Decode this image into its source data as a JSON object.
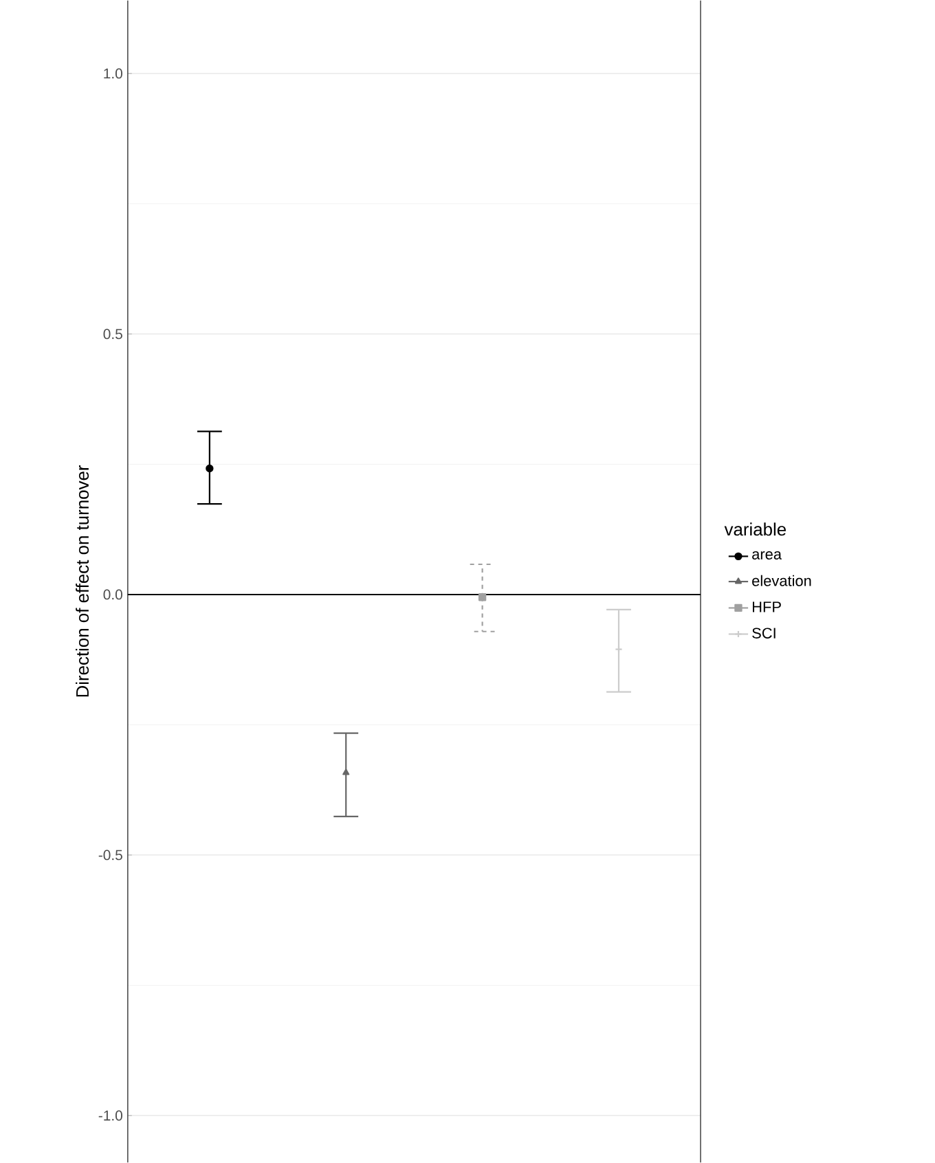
{
  "chart_data": {
    "type": "scatter",
    "ylabel": "Direction of effect on turnover",
    "legend_title": "variable",
    "categories": [
      null,
      null,
      null,
      null
    ],
    "series": [
      {
        "name": "area",
        "color": "#000000",
        "marker": "circle",
        "line_style": "solid",
        "values": [
          0.242,
          null,
          null,
          null
        ],
        "errors": [
          [
            0.174,
            0.313
          ],
          null,
          null,
          null
        ]
      },
      {
        "name": "elevation",
        "color": "#666666",
        "marker": "triangle",
        "line_style": "solid",
        "values": [
          null,
          -0.342,
          null,
          null
        ],
        "errors": [
          null,
          [
            -0.426,
            -0.266
          ],
          null,
          null
        ]
      },
      {
        "name": "HFP",
        "color": "#a0a0a0",
        "marker": "square",
        "line_style": "dashed",
        "values": [
          null,
          null,
          -0.005,
          null
        ],
        "errors": [
          null,
          null,
          [
            -0.071,
            0.058
          ],
          null
        ]
      },
      {
        "name": "SCI",
        "color": "#cccccc",
        "marker": "cross",
        "line_style": "solid",
        "values": [
          null,
          null,
          null,
          -0.105
        ],
        "errors": [
          null,
          null,
          null,
          [
            -0.187,
            -0.029
          ]
        ]
      }
    ],
    "ylim": [
      -1.09,
      1.14
    ],
    "yticks": [
      {
        "value": -1,
        "label": "-1.0"
      },
      {
        "value": -0.5,
        "label": "-0.5"
      },
      {
        "value": 0,
        "label": "0.0"
      },
      {
        "value": 0.5,
        "label": "0.5"
      },
      {
        "value": 1,
        "label": "1.0"
      }
    ],
    "ref_lines": [
      {
        "axis": "y",
        "value": 0,
        "color": "#000000",
        "line_style": "solid"
      }
    ],
    "grid": "y",
    "legend": "right",
    "tick_labels": "y"
  }
}
